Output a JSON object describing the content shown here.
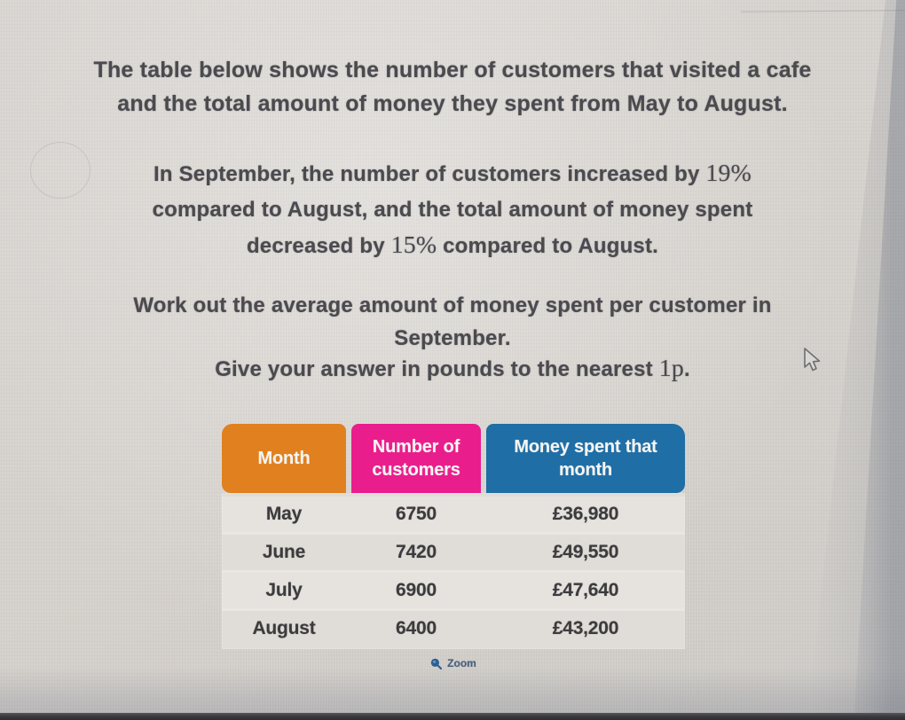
{
  "problem": {
    "intro": {
      "lines": [
        [
          {
            "t": "The table below shows the number of customers that visited a cafe"
          }
        ],
        [
          {
            "t": "and the total amount of money they spent from May to August."
          }
        ]
      ]
    },
    "condition": {
      "lines": [
        [
          {
            "t": "In September, the number of customers increased by "
          },
          {
            "t": "19%",
            "math": true
          }
        ],
        [
          {
            "t": "compared to August, and the total amount of money spent"
          }
        ],
        [
          {
            "t": "decreased by "
          },
          {
            "t": "15%",
            "math": true
          },
          {
            "t": " compared to August."
          }
        ]
      ]
    },
    "task": {
      "lines": [
        [
          {
            "t": "Work out the average amount of money spent per customer in"
          }
        ],
        [
          {
            "t": "September."
          }
        ]
      ]
    },
    "instruction": {
      "lines": [
        [
          {
            "t": "Give your answer in pounds to the nearest "
          },
          {
            "t": "1p",
            "math": true
          },
          {
            "t": "."
          }
        ]
      ]
    }
  },
  "table": {
    "columns": [
      {
        "label": "Month",
        "color": "#e1801f"
      },
      {
        "label": "Number of customers",
        "color": "#e91d8c"
      },
      {
        "label": "Money spent that month",
        "color": "#1f6ea6"
      }
    ],
    "rows": [
      {
        "month": "May",
        "customers": "6750",
        "money": "£36,980"
      },
      {
        "month": "June",
        "customers": "7420",
        "money": "£49,550"
      },
      {
        "month": "July",
        "customers": "6900",
        "money": "£47,640"
      },
      {
        "month": "August",
        "customers": "6400",
        "money": "£43,200"
      }
    ]
  },
  "toolbar": {
    "zoom_label": "Zoom"
  },
  "colors": {
    "header_text": "#f7f5f3",
    "body_text": "#3c3b3e",
    "question_text": "#4b4a4f",
    "zoom_icon": "#2d5f93"
  },
  "chart_data": {
    "type": "table",
    "title": "Cafe customers and money spent, May to August",
    "columns": [
      "Month",
      "Number of customers",
      "Money spent that month"
    ],
    "rows": [
      [
        "May",
        6750,
        "£36,980"
      ],
      [
        "June",
        7420,
        "£49,550"
      ],
      [
        "July",
        6900,
        "£47,640"
      ],
      [
        "August",
        6400,
        "£43,200"
      ]
    ]
  }
}
